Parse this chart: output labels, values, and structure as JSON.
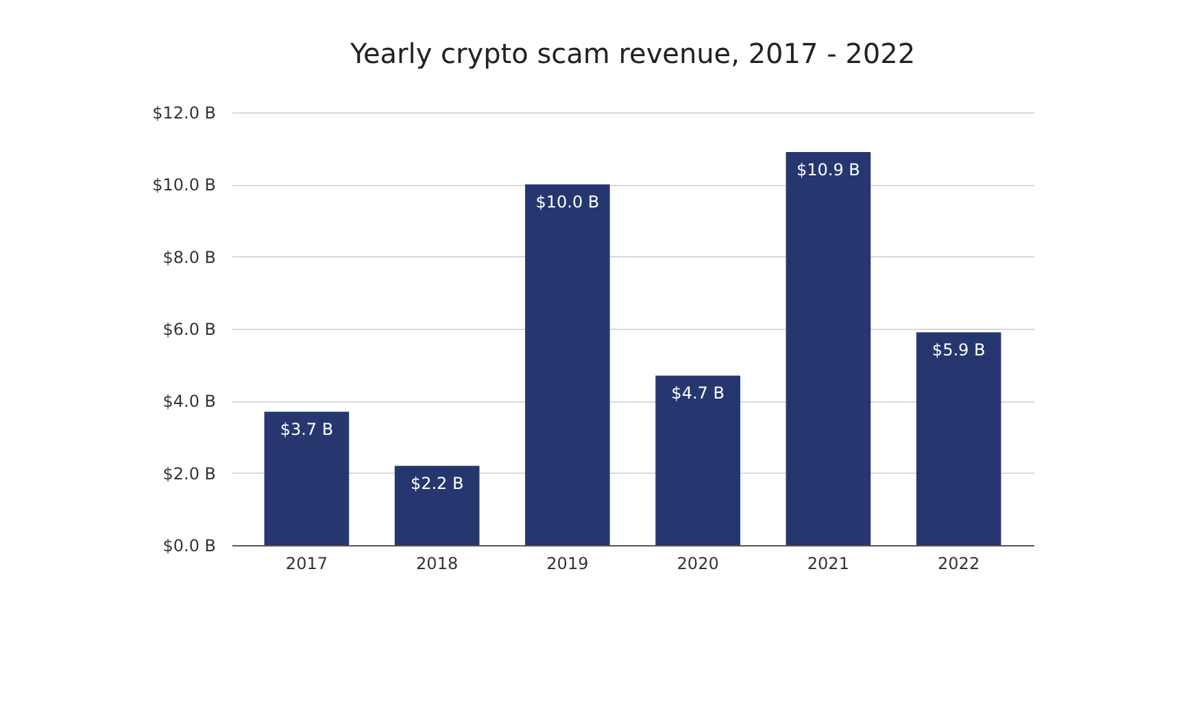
{
  "chart_data": {
    "type": "bar",
    "title": "Yearly crypto scam revenue, 2017 - 2022",
    "categories": [
      "2017",
      "2018",
      "2019",
      "2020",
      "2021",
      "2022"
    ],
    "values": [
      3.7,
      2.2,
      10.0,
      4.7,
      10.9,
      5.9
    ],
    "value_labels": [
      "$3.7 B",
      "$2.2 B",
      "$10.0 B",
      "$4.7 B",
      "$10.9 B",
      "$5.9 B"
    ],
    "color": "#263770",
    "ylim": [
      0,
      12
    ],
    "yticks": [
      {
        "value": 0,
        "label": "$0.0 B"
      },
      {
        "value": 2,
        "label": "$2.0 B"
      },
      {
        "value": 4,
        "label": "$4.0 B"
      },
      {
        "value": 6,
        "label": "$6.0 B"
      },
      {
        "value": 8,
        "label": "$8.0 B"
      },
      {
        "value": 10,
        "label": "$10.0 B"
      },
      {
        "value": 12,
        "label": "$12.0 B"
      }
    ],
    "grid": "y"
  }
}
